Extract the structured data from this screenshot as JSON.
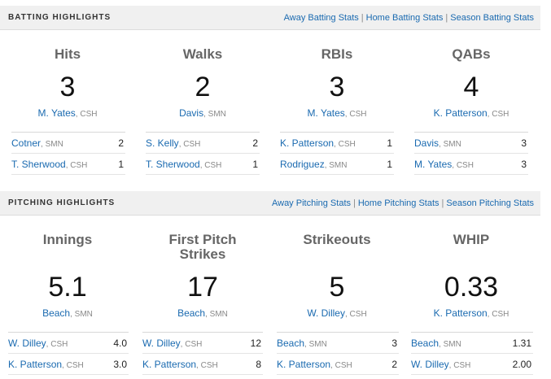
{
  "batting": {
    "title": "BATTING HIGHLIGHTS",
    "links": [
      "Away Batting Stats",
      "Home Batting Stats",
      "Season Batting Stats"
    ],
    "stats": [
      {
        "name": "Hits",
        "value": "3",
        "leader": {
          "player": "M. Yates",
          "team": "CSH"
        },
        "others": [
          {
            "player": "Cotner",
            "team": "SMN",
            "value": "2"
          },
          {
            "player": "T. Sherwood",
            "team": "CSH",
            "value": "1"
          }
        ]
      },
      {
        "name": "Walks",
        "value": "2",
        "leader": {
          "player": "Davis",
          "team": "SMN"
        },
        "others": [
          {
            "player": "S. Kelly",
            "team": "CSH",
            "value": "2"
          },
          {
            "player": "T. Sherwood",
            "team": "CSH",
            "value": "1"
          }
        ]
      },
      {
        "name": "RBIs",
        "value": "3",
        "leader": {
          "player": "M. Yates",
          "team": "CSH"
        },
        "others": [
          {
            "player": "K. Patterson",
            "team": "CSH",
            "value": "1"
          },
          {
            "player": "Rodriguez",
            "team": "SMN",
            "value": "1"
          }
        ]
      },
      {
        "name": "QABs",
        "value": "4",
        "leader": {
          "player": "K. Patterson",
          "team": "CSH"
        },
        "others": [
          {
            "player": "Davis",
            "team": "SMN",
            "value": "3"
          },
          {
            "player": "M. Yates",
            "team": "CSH",
            "value": "3"
          }
        ]
      }
    ]
  },
  "pitching": {
    "title": "PITCHING HIGHLIGHTS",
    "links": [
      "Away Pitching Stats",
      "Home Pitching Stats",
      "Season Pitching Stats"
    ],
    "stats": [
      {
        "name": "Innings",
        "value": "5.1",
        "leader": {
          "player": "Beach",
          "team": "SMN"
        },
        "others": [
          {
            "player": "W. Dilley",
            "team": "CSH",
            "value": "4.0"
          },
          {
            "player": "K. Patterson",
            "team": "CSH",
            "value": "3.0"
          }
        ]
      },
      {
        "name": "First Pitch Strikes",
        "value": "17",
        "leader": {
          "player": "Beach",
          "team": "SMN"
        },
        "others": [
          {
            "player": "W. Dilley",
            "team": "CSH",
            "value": "12"
          },
          {
            "player": "K. Patterson",
            "team": "CSH",
            "value": "8"
          }
        ]
      },
      {
        "name": "Strikeouts",
        "value": "5",
        "leader": {
          "player": "W. Dilley",
          "team": "CSH"
        },
        "others": [
          {
            "player": "Beach",
            "team": "SMN",
            "value": "3"
          },
          {
            "player": "K. Patterson",
            "team": "CSH",
            "value": "2"
          }
        ]
      },
      {
        "name": "WHIP",
        "value": "0.33",
        "leader": {
          "player": "K. Patterson",
          "team": "CSH"
        },
        "others": [
          {
            "player": "Beach",
            "team": "SMN",
            "value": "1.31"
          },
          {
            "player": "W. Dilley",
            "team": "CSH",
            "value": "2.00"
          }
        ]
      }
    ]
  }
}
